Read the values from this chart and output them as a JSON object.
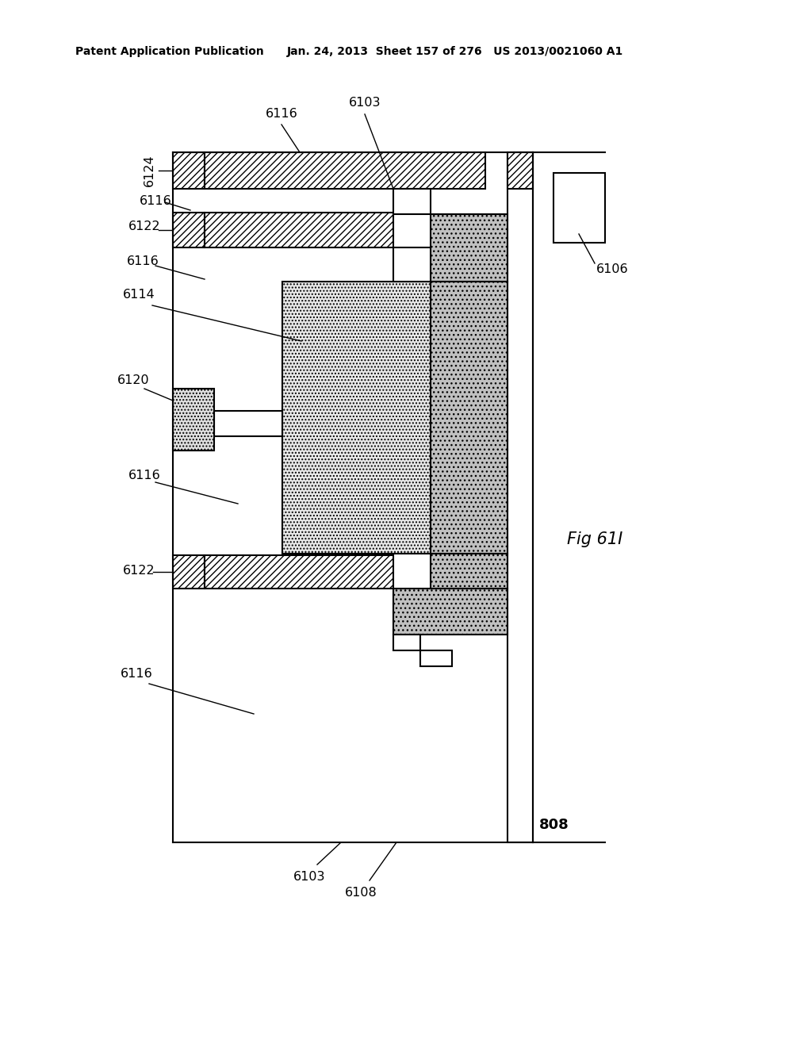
{
  "bg": "#ffffff",
  "lc": "#000000",
  "header1": "Patent Application Publication",
  "header2": "Jan. 24, 2013  Sheet 157 of 276   US 2013/0021060 A1",
  "fig_label": "Fig 61I",
  "label_808": "808",
  "gray_fill": "#c0c0c0",
  "dot_fill": "#d8d8d8",
  "light_dot_fill": "#e8e8e8",
  "hatch_fill": "#c8c8c8"
}
